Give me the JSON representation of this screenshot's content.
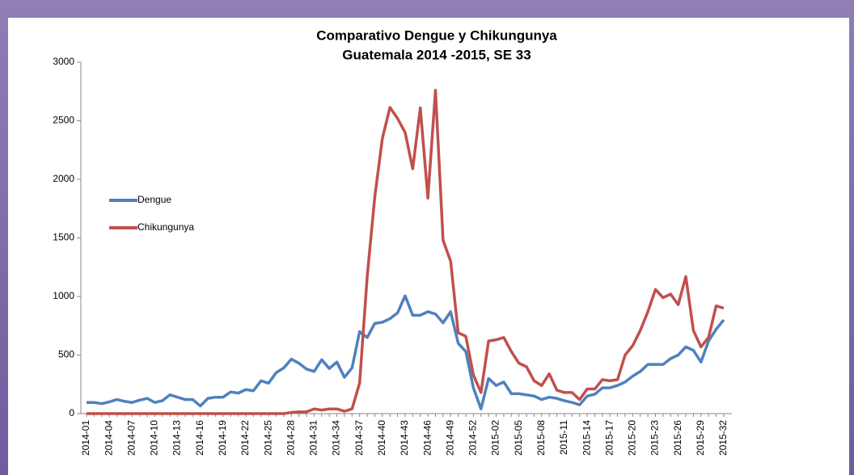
{
  "chart_data": {
    "type": "line",
    "title": "Comparativo Dengue y Chikungunya",
    "subtitle": "Guatemala 2014 -2015, SE 33",
    "categories": [
      "2014-01",
      null,
      null,
      "2014-04",
      null,
      null,
      "2014-07",
      null,
      null,
      "2014-10",
      null,
      null,
      "2014-13",
      null,
      null,
      "2014-16",
      null,
      null,
      "2014-19",
      null,
      null,
      "2014-22",
      null,
      null,
      "2014-25",
      null,
      null,
      "2014-28",
      null,
      null,
      "2014-31",
      null,
      null,
      "2014-34",
      null,
      null,
      "2014-37",
      null,
      null,
      "2014-40",
      null,
      null,
      "2014-43",
      null,
      null,
      "2014-46",
      null,
      null,
      "2014-49",
      null,
      null,
      "2014-52",
      null,
      null,
      "2015-02",
      null,
      null,
      "2015-05",
      null,
      null,
      "2015-08",
      null,
      null,
      "2015-11",
      null,
      null,
      "2015-14",
      null,
      null,
      "2015-17",
      null,
      null,
      "2015-20",
      null,
      null,
      "2015-23",
      null,
      null,
      "2015-26",
      null,
      null,
      "2015-29",
      null,
      null,
      "2015-32"
    ],
    "series": [
      {
        "name": "Dengue",
        "color": "#4f81bd",
        "values": [
          95,
          95,
          85,
          100,
          120,
          105,
          95,
          115,
          130,
          95,
          110,
          160,
          140,
          120,
          120,
          65,
          130,
          140,
          140,
          185,
          175,
          205,
          195,
          280,
          260,
          350,
          390,
          465,
          430,
          380,
          360,
          460,
          385,
          440,
          310,
          390,
          700,
          650,
          770,
          780,
          810,
          860,
          1005,
          840,
          840,
          870,
          850,
          775,
          870,
          600,
          530,
          220,
          40,
          300,
          240,
          270,
          170,
          170,
          160,
          150,
          120,
          140,
          130,
          110,
          95,
          75,
          150,
          165,
          220,
          220,
          240,
          270,
          320,
          360,
          420,
          420,
          420,
          470,
          500,
          570,
          540,
          440,
          620,
          720,
          800
        ]
      },
      {
        "name": "Chikungunya",
        "color": "#c0504d",
        "values": [
          0,
          0,
          0,
          0,
          0,
          0,
          0,
          0,
          0,
          0,
          0,
          0,
          0,
          0,
          0,
          0,
          0,
          0,
          0,
          0,
          0,
          0,
          0,
          0,
          0,
          0,
          0,
          10,
          15,
          15,
          40,
          30,
          40,
          40,
          20,
          40,
          260,
          1170,
          1850,
          2350,
          2614,
          2520,
          2400,
          2090,
          2610,
          1840,
          2760,
          1480,
          1300,
          690,
          660,
          330,
          180,
          620,
          630,
          650,
          530,
          430,
          400,
          280,
          240,
          340,
          200,
          180,
          180,
          120,
          210,
          210,
          290,
          280,
          290,
          500,
          580,
          710,
          870,
          1060,
          990,
          1020,
          930,
          1170,
          710,
          570,
          650,
          920,
          900
        ]
      }
    ],
    "ylim": [
      0,
      3000
    ],
    "yticks": [
      0,
      500,
      1000,
      1500,
      2000,
      2500,
      3000
    ]
  }
}
